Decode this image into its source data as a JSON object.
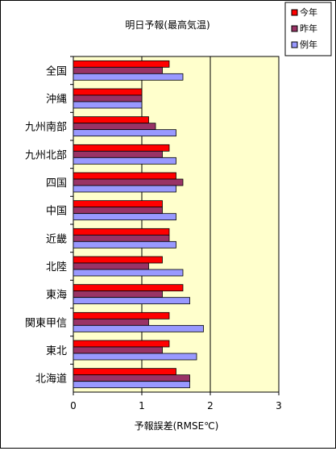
{
  "chart_data": {
    "type": "bar",
    "orientation": "horizontal",
    "title": "明日予報(最高気温)",
    "xlabel": "予報誤差(RMSE℃)",
    "ylabel": "",
    "xlim": [
      0,
      3
    ],
    "xticks": [
      "0",
      "1",
      "2",
      "3"
    ],
    "categories": [
      "全国",
      "沖縄",
      "九州南部",
      "九州北部",
      "四国",
      "中国",
      "近畿",
      "北陸",
      "東海",
      "関東甲信",
      "東北",
      "北海道"
    ],
    "series": [
      {
        "name": "今年",
        "color": "#ff0000",
        "values": [
          1.4,
          1.0,
          1.1,
          1.4,
          1.5,
          1.3,
          1.4,
          1.3,
          1.6,
          1.4,
          1.4,
          1.5
        ]
      },
      {
        "name": "昨年",
        "color": "#993366",
        "values": [
          1.3,
          1.0,
          1.2,
          1.3,
          1.6,
          1.3,
          1.4,
          1.1,
          1.3,
          1.1,
          1.3,
          1.7
        ]
      },
      {
        "name": "例年",
        "color": "#9999ff",
        "values": [
          1.6,
          1.0,
          1.5,
          1.5,
          1.5,
          1.5,
          1.5,
          1.6,
          1.7,
          1.9,
          1.8,
          1.7
        ]
      }
    ],
    "grid": true,
    "legend_position": "top-right",
    "plot_background": "#ffffcc"
  }
}
